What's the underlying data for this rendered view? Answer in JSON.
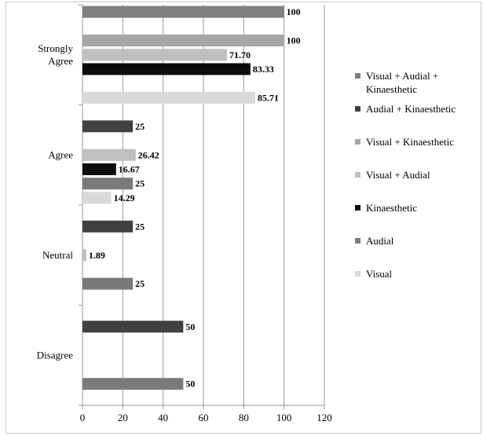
{
  "chart_data": {
    "type": "bar",
    "orientation": "horizontal",
    "categories": [
      "Strongly Agree",
      "Agree",
      "Neutral",
      "Disagree"
    ],
    "xlim": [
      0,
      120
    ],
    "x_ticks": [
      "0",
      "20",
      "40",
      "60",
      "80",
      "100",
      "120"
    ],
    "grid": "vertical",
    "legend_position": "right",
    "series": [
      {
        "name": "Visual + Audial + Kinaesthetic",
        "color": "#7f7f7f",
        "values": [
          100,
          null,
          null,
          null
        ],
        "labels": [
          "100",
          "",
          "",
          ""
        ]
      },
      {
        "name": "Audial + Kinaesthetic",
        "color": "#404040",
        "values": [
          null,
          25,
          25,
          50
        ],
        "labels": [
          "",
          "25",
          "25",
          "50"
        ]
      },
      {
        "name": "Visual + Kinaesthetic",
        "color": "#a6a6a6",
        "values": [
          100,
          null,
          null,
          null
        ],
        "labels": [
          "100",
          "",
          "",
          ""
        ]
      },
      {
        "name": "Visual + Audial",
        "color": "#bfbfbf",
        "values": [
          71.7,
          26.42,
          1.89,
          null
        ],
        "labels": [
          "71.70",
          "26.42",
          "1.89",
          ""
        ]
      },
      {
        "name": "Kinaesthetic",
        "color": "#0d0d0d",
        "values": [
          83.33,
          16.67,
          null,
          null
        ],
        "labels": [
          "83.33",
          "16.67",
          "",
          ""
        ]
      },
      {
        "name": "Audial",
        "color": "#7a7a7a",
        "values": [
          null,
          25,
          25,
          50
        ],
        "labels": [
          "",
          "25",
          "25",
          "50"
        ]
      },
      {
        "name": "Visual",
        "color": "#d9d9d9",
        "values": [
          85.71,
          14.29,
          null,
          null
        ],
        "labels": [
          "85.71",
          "14.29",
          "",
          ""
        ]
      }
    ]
  }
}
